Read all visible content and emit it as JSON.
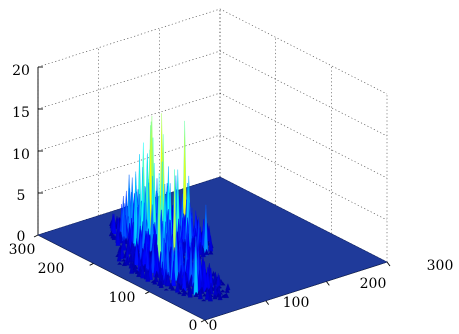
{
  "chart_data": {
    "type": "surface",
    "title": "",
    "xlabel": "",
    "ylabel": "",
    "zlabel": "",
    "xlim": [
      0,
      300
    ],
    "ylim": [
      0,
      300
    ],
    "zlim": [
      0,
      20
    ],
    "x_ticks": [
      "0",
      "100",
      "200",
      "300"
    ],
    "y_ticks": [
      "0",
      "100",
      "200",
      "300"
    ],
    "z_ticks": [
      "0",
      "5",
      "10",
      "15",
      "20"
    ],
    "grid": true,
    "colormap": "jet",
    "colormap_stops": [
      "#00008f",
      "#0000ff",
      "#0080ff",
      "#00ffff",
      "#80ff80",
      "#ffff00"
    ],
    "floor_color": "#1f3a9a",
    "peaks": [
      {
        "x": 60,
        "y": 120,
        "z": 12.5
      },
      {
        "x": 62,
        "y": 150,
        "z": 11
      },
      {
        "x": 110,
        "y": 195,
        "z": 13
      },
      {
        "x": 150,
        "y": 200,
        "z": 13.5
      },
      {
        "x": 40,
        "y": 60,
        "z": 7
      },
      {
        "x": 130,
        "y": 140,
        "z": 6
      }
    ],
    "regions": [
      {
        "x_range": [
          20,
          90
        ],
        "y_range": [
          40,
          200
        ],
        "z_typical": 3
      },
      {
        "x_range": [
          60,
          160
        ],
        "y_range": [
          140,
          260
        ],
        "z_typical": 6
      }
    ]
  }
}
